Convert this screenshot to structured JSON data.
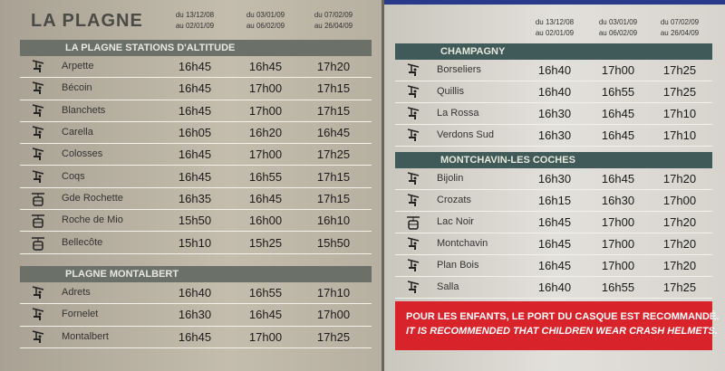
{
  "left": {
    "title": "LA PLAGNE",
    "columns": [
      [
        "du 13/12/08",
        "au 02/01/09"
      ],
      [
        "du 03/01/09",
        "au 06/02/09"
      ],
      [
        "du 07/02/09",
        "au 26/04/09"
      ]
    ],
    "sections": [
      {
        "title": "LA PLAGNE STATIONS D'ALTITUDE",
        "rows": [
          {
            "name": "Arpette",
            "times": [
              "16h45",
              "16h45",
              "17h20"
            ]
          },
          {
            "name": "Bécoin",
            "times": [
              "16h45",
              "17h00",
              "17h15"
            ]
          },
          {
            "name": "Blanchets",
            "times": [
              "16h45",
              "17h00",
              "17h15"
            ]
          },
          {
            "name": "Carella",
            "times": [
              "16h05",
              "16h20",
              "16h45"
            ]
          },
          {
            "name": "Colosses",
            "times": [
              "16h45",
              "17h00",
              "17h25"
            ]
          },
          {
            "name": "Coqs",
            "times": [
              "16h45",
              "16h55",
              "17h15"
            ]
          },
          {
            "name": "Gde Rochette",
            "times": [
              "16h35",
              "16h45",
              "17h15"
            ]
          },
          {
            "name": "Roche de Mio",
            "times": [
              "15h50",
              "16h00",
              "16h10"
            ]
          },
          {
            "name": "Bellecôte",
            "times": [
              "15h10",
              "15h25",
              "15h50"
            ]
          }
        ]
      },
      {
        "title": "PLAGNE MONTALBERT",
        "rows": [
          {
            "name": "Adrets",
            "times": [
              "16h40",
              "16h55",
              "17h10"
            ]
          },
          {
            "name": "Fornelet",
            "times": [
              "16h30",
              "16h45",
              "17h00"
            ]
          },
          {
            "name": "Montalbert",
            "times": [
              "16h45",
              "17h00",
              "17h25"
            ]
          }
        ]
      }
    ]
  },
  "right": {
    "columns": [
      [
        "du 13/12/08",
        "au 02/01/09"
      ],
      [
        "du 03/01/09",
        "au 06/02/09"
      ],
      [
        "du 07/02/09",
        "au 26/04/09"
      ]
    ],
    "sections": [
      {
        "title": "CHAMPAGNY",
        "rows": [
          {
            "name": "Borseliers",
            "times": [
              "16h40",
              "17h00",
              "17h25"
            ]
          },
          {
            "name": "Quillis",
            "times": [
              "16h40",
              "16h55",
              "17h25"
            ]
          },
          {
            "name": "La Rossa",
            "times": [
              "16h30",
              "16h45",
              "17h10"
            ]
          },
          {
            "name": "Verdons Sud",
            "times": [
              "16h30",
              "16h45",
              "17h10"
            ]
          }
        ]
      },
      {
        "title": "MONTCHAVIN-LES COCHES",
        "rows": [
          {
            "name": "Bijolin",
            "times": [
              "16h30",
              "16h45",
              "17h20"
            ]
          },
          {
            "name": "Crozats",
            "times": [
              "16h15",
              "16h30",
              "17h00"
            ]
          },
          {
            "name": "Lac Noir",
            "times": [
              "16h45",
              "17h00",
              "17h20"
            ]
          },
          {
            "name": "Montchavin",
            "times": [
              "16h45",
              "17h00",
              "17h20"
            ]
          },
          {
            "name": "Plan Bois",
            "times": [
              "16h45",
              "17h00",
              "17h20"
            ]
          },
          {
            "name": "Salla",
            "times": [
              "16h40",
              "16h55",
              "17h25"
            ]
          }
        ]
      }
    ],
    "notice": [
      "POUR LES ENFANTS, LE PORT DU CASQUE EST RECOMMANDÉ.",
      "IT IS RECOMMENDED THAT CHILDREN WEAR CRASH HELMETS."
    ]
  }
}
